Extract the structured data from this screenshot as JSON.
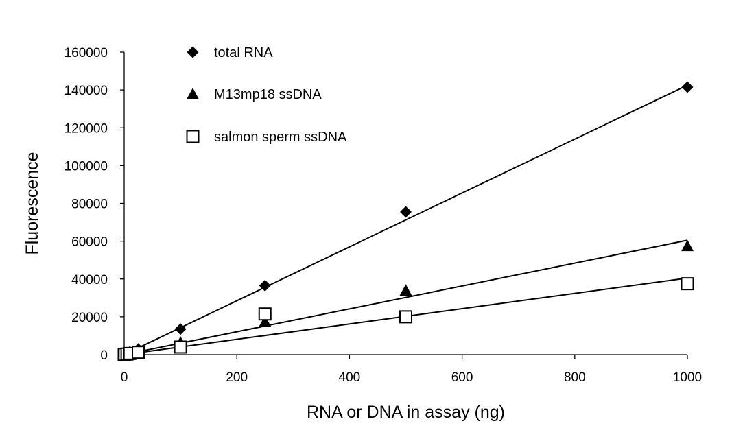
{
  "chart_data": {
    "type": "scatter",
    "title": "",
    "xlabel": "RNA or DNA in assay (ng)",
    "ylabel": "Fluorescence",
    "xlim": [
      0,
      1000
    ],
    "ylim": [
      0,
      160000
    ],
    "x_ticks": [
      0,
      200,
      400,
      600,
      800,
      1000
    ],
    "y_ticks": [
      0,
      20000,
      40000,
      60000,
      80000,
      100000,
      120000,
      140000,
      160000
    ],
    "grid": false,
    "legend_position": "top-left",
    "series": [
      {
        "name": "total RNA",
        "marker": "diamond",
        "color": "#000000",
        "x": [
          0,
          1,
          5,
          10,
          25,
          100,
          250,
          500,
          1000
        ],
        "y": [
          0,
          200,
          700,
          1400,
          3000,
          13500,
          36500,
          75500,
          141500
        ],
        "trendline": {
          "type": "linear",
          "x": [
            0,
            1000
          ],
          "y": [
            0,
            142500
          ]
        }
      },
      {
        "name": "M13mp18 ssDNA",
        "marker": "triangle",
        "color": "#000000",
        "x": [
          0,
          1,
          5,
          10,
          25,
          100,
          250,
          500,
          1000
        ],
        "y": [
          0,
          100,
          400,
          800,
          1800,
          6500,
          17500,
          34000,
          57500
        ],
        "trendline": {
          "type": "linear",
          "x": [
            0,
            1000
          ],
          "y": [
            0,
            60500
          ]
        }
      },
      {
        "name": "salmon sperm ssDNA",
        "marker": "open-square",
        "color": "#000000",
        "x": [
          0,
          1,
          5,
          10,
          25,
          100,
          250,
          500,
          1000
        ],
        "y": [
          0,
          100,
          300,
          600,
          1200,
          4000,
          21500,
          20000,
          37500
        ],
        "trendline": {
          "type": "linear",
          "x": [
            0,
            1000
          ],
          "y": [
            0,
            40500
          ]
        }
      }
    ]
  }
}
